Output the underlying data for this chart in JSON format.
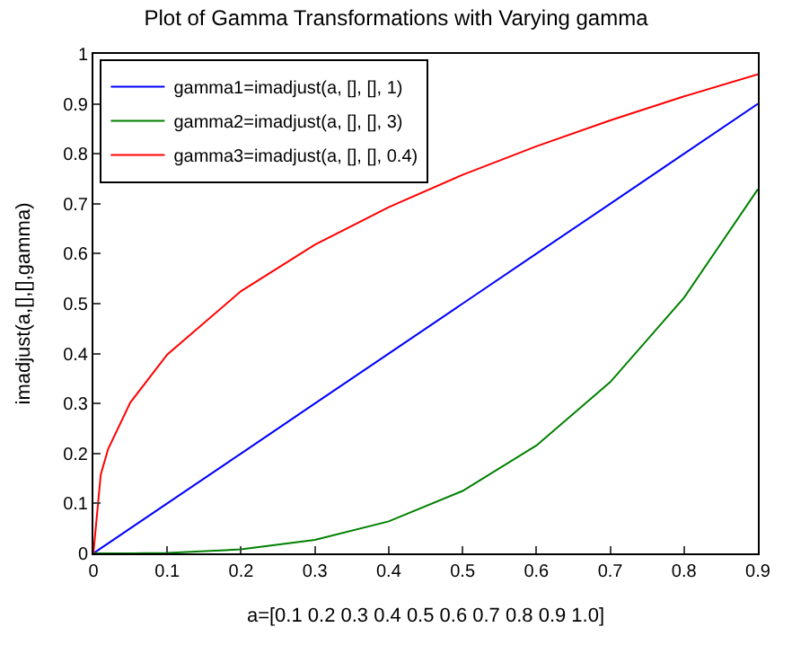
{
  "chart_data": {
    "type": "line",
    "title": "Plot of Gamma Transformations with Varying gamma",
    "xlabel": "a=[0.1 0.2 0.3 0.4 0.5 0.6 0.7 0.8 0.9 1.0]",
    "ylabel": "imadjust(a,[],[],gamma)",
    "x": [
      0,
      0.01,
      0.02,
      0.05,
      0.1,
      0.2,
      0.3,
      0.4,
      0.5,
      0.6,
      0.7,
      0.8,
      0.9
    ],
    "series": [
      {
        "name": "gamma1=imadjust(a, [], [], 1)",
        "color": "#0000ff",
        "values": [
          0,
          0.01,
          0.02,
          0.05,
          0.1,
          0.2,
          0.3,
          0.4,
          0.5,
          0.6,
          0.7,
          0.8,
          0.9
        ]
      },
      {
        "name": "gamma2=imadjust(a, [], [], 3)",
        "color": "#008000",
        "values": [
          0,
          0,
          0,
          0,
          0.001,
          0.008,
          0.027,
          0.064,
          0.125,
          0.216,
          0.343,
          0.512,
          0.729
        ]
      },
      {
        "name": "gamma3=imadjust(a, [], [], 0.4)",
        "color": "#ff0000",
        "values": [
          0,
          0.158,
          0.209,
          0.302,
          0.398,
          0.525,
          0.618,
          0.693,
          0.758,
          0.815,
          0.867,
          0.915,
          0.959
        ]
      }
    ],
    "xlim": [
      0,
      0.9
    ],
    "xticks": [
      0,
      0.1,
      0.2,
      0.3,
      0.4,
      0.5,
      0.6,
      0.7,
      0.8,
      0.9
    ],
    "ylim": [
      0,
      1
    ],
    "yticks": [
      0,
      0.1,
      0.2,
      0.3,
      0.4,
      0.5,
      0.6,
      0.7,
      0.8,
      0.9,
      1
    ],
    "legend": "top left"
  }
}
